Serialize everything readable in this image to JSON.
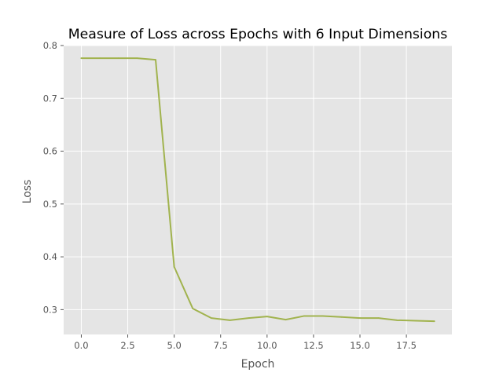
{
  "chart_data": {
    "type": "line",
    "title": "Measure of Loss across Epochs with 6 Input Dimensions",
    "xlabel": "Epoch",
    "ylabel": "Loss",
    "xlim": [
      -0.95,
      19.95
    ],
    "ylim": [
      0.253,
      0.8
    ],
    "xticks": [
      0,
      2.5,
      5,
      7.5,
      10,
      12.5,
      15,
      17.5
    ],
    "xtick_labels": [
      "0.0",
      "2.5",
      "5.0",
      "7.5",
      "10.0",
      "12.5",
      "15.0",
      "17.5"
    ],
    "yticks": [
      0.3,
      0.4,
      0.5,
      0.6,
      0.7,
      0.8
    ],
    "ytick_labels": [
      "0.3",
      "0.4",
      "0.5",
      "0.6",
      "0.7",
      "0.8"
    ],
    "grid": true,
    "style": "ggplot",
    "background_color": "#e5e5e5",
    "grid_color": "#ffffff",
    "series": [
      {
        "color": "#a1b34e",
        "x": [
          0,
          1,
          2,
          3,
          4,
          5,
          6,
          7,
          8,
          9,
          10,
          11,
          12,
          13,
          14,
          15,
          16,
          17,
          18,
          19
        ],
        "y": [
          0.776,
          0.776,
          0.776,
          0.776,
          0.773,
          0.381,
          0.302,
          0.284,
          0.28,
          0.284,
          0.287,
          0.281,
          0.288,
          0.288,
          0.286,
          0.284,
          0.284,
          0.28,
          0.279,
          0.278
        ]
      }
    ]
  }
}
